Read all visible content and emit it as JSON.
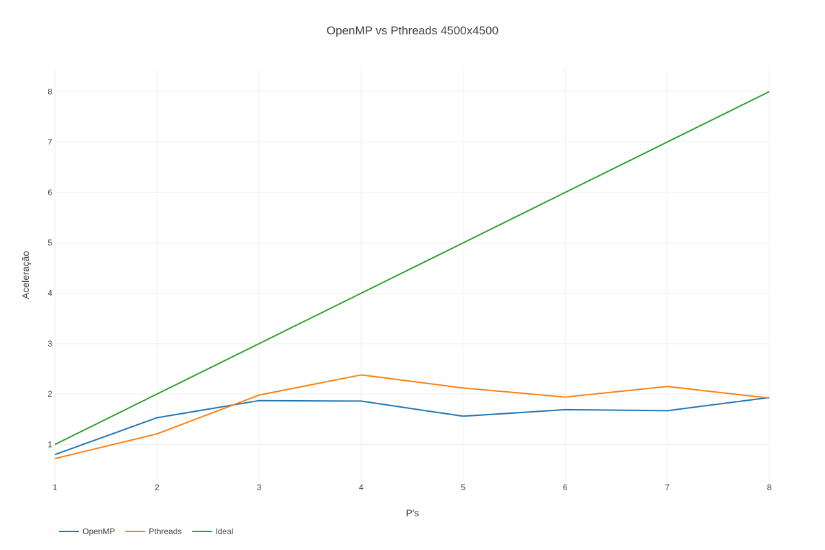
{
  "chart_data": {
    "type": "line",
    "title": "OpenMP vs Pthreads 4500x4500",
    "xlabel": "P's",
    "ylabel": "Aceleração",
    "x": [
      1,
      2,
      3,
      4,
      5,
      6,
      7,
      8
    ],
    "xlim": [
      1,
      8
    ],
    "ylim": [
      0.27,
      8.44
    ],
    "x_ticks": [
      1,
      2,
      3,
      4,
      5,
      6,
      7,
      8
    ],
    "y_ticks": [
      1,
      2,
      3,
      4,
      5,
      6,
      7,
      8
    ],
    "grid": true,
    "legend_position": "bottom-left",
    "series": [
      {
        "name": "OpenMP",
        "color": "#1f77b4",
        "values": [
          0.8,
          1.53,
          1.87,
          1.86,
          1.56,
          1.69,
          1.67,
          1.93
        ]
      },
      {
        "name": "Pthreads",
        "color": "#ff7f0e",
        "values": [
          0.72,
          1.21,
          1.98,
          2.38,
          2.12,
          1.94,
          2.15,
          1.92
        ]
      },
      {
        "name": "Ideal",
        "color": "#2ca02c",
        "values": [
          1,
          2,
          3,
          4,
          5,
          6,
          7,
          8
        ]
      }
    ]
  }
}
